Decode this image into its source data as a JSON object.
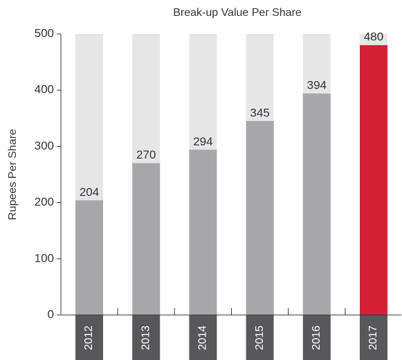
{
  "chart_data": {
    "type": "bar",
    "title": "Break-up Value Per Share",
    "y_label": "Rupees Per Share",
    "categories": [
      "2012",
      "2013",
      "2014",
      "2015",
      "2016",
      "2017"
    ],
    "values": [
      204,
      270,
      294,
      345,
      394,
      480
    ],
    "colors": [
      "#a7a7a9",
      "#a7a7a9",
      "#a7a7a9",
      "#a7a7a9",
      "#a7a7a9",
      "#d51f35"
    ],
    "background_color": "#e6e6e7",
    "label_box_color": "#58585a",
    "ylim": [
      0,
      500
    ],
    "yticks": [
      0,
      100,
      200,
      300,
      400,
      500
    ]
  }
}
